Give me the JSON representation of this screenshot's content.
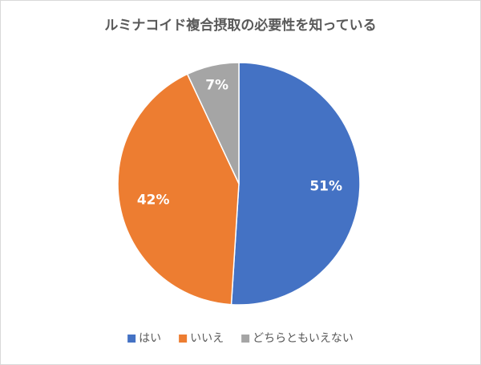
{
  "chart_data": {
    "type": "pie",
    "title": "ルミナコイド複合摂取の必要性を知っている",
    "categories": [
      "はい",
      "いいえ",
      "どちらともいえない"
    ],
    "values": [
      51,
      42,
      7
    ],
    "value_labels": [
      "51%",
      "42%",
      "7%"
    ],
    "colors": [
      "#4472c4",
      "#ed7d31",
      "#a5a5a5"
    ],
    "legend": "bottom"
  }
}
